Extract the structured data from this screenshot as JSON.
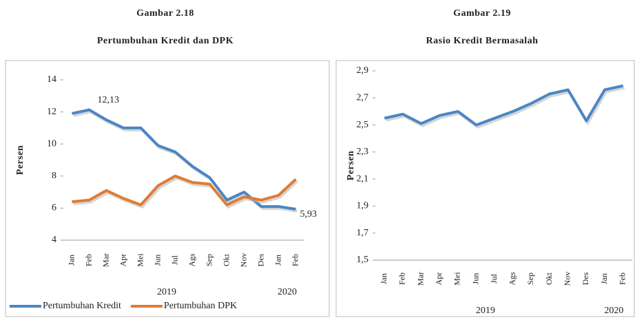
{
  "chart_data": [
    {
      "type": "line",
      "title": "Gambar 2.18",
      "subtitle": "Pertumbuhan Kredit dan DPK",
      "y_label": "Persen",
      "categories": [
        "Jan",
        "Feb",
        "Mar",
        "Apr",
        "Mei",
        "Jun",
        "Jul",
        "Ags",
        "Sep",
        "Okt",
        "Nov",
        "Des",
        "Jan",
        "Feb"
      ],
      "groups": [
        {
          "label": "2019",
          "count": 12
        },
        {
          "label": "2020",
          "count": 2
        }
      ],
      "series": [
        {
          "name": "Pertumbuhan Kredit",
          "color": "#4a86c5",
          "values": [
            11.9,
            12.13,
            11.5,
            11.0,
            11.0,
            9.9,
            9.5,
            8.6,
            7.9,
            6.5,
            7.0,
            6.1,
            6.1,
            5.93
          ],
          "value_labels": [
            null,
            "12,13",
            null,
            null,
            null,
            null,
            null,
            null,
            null,
            null,
            null,
            null,
            null,
            "5,93"
          ]
        },
        {
          "name": "Pertumbuhan DPK",
          "color": "#e07b33",
          "values": [
            6.4,
            6.5,
            7.1,
            6.6,
            6.2,
            7.4,
            8.0,
            7.6,
            7.5,
            6.2,
            6.7,
            6.5,
            6.8,
            7.8
          ]
        }
      ],
      "ylim": [
        4,
        14
      ],
      "yticks": [
        4,
        6,
        8,
        10,
        12,
        14
      ],
      "grid": false,
      "legend": "bottom"
    },
    {
      "type": "line",
      "title": "Gambar 2.19",
      "subtitle": "Rasio Kredit Bermasalah",
      "y_label": "Persen",
      "categories": [
        "Jan",
        "Feb",
        "Mar",
        "Apr",
        "Mei",
        "Jun",
        "Jul",
        "Ags",
        "Sep",
        "Okt",
        "Nov",
        "Des",
        "Jan",
        "Feb"
      ],
      "groups": [
        {
          "label": "2019",
          "count": 12
        },
        {
          "label": "2020",
          "count": 2
        }
      ],
      "color": "#4a86c5",
      "values": [
        2.55,
        2.58,
        2.51,
        2.57,
        2.6,
        2.5,
        2.55,
        2.6,
        2.66,
        2.73,
        2.76,
        2.53,
        2.76,
        2.79
      ],
      "ylim": [
        1.5,
        2.9
      ],
      "yticks": [
        {
          "value": 1.5,
          "label": "1,5"
        },
        {
          "value": 1.7,
          "label": "1,7"
        },
        {
          "value": 1.9,
          "label": "1,9"
        },
        {
          "value": 2.1,
          "label": "2,1"
        },
        {
          "value": 2.3,
          "label": "2,3"
        },
        {
          "value": 2.5,
          "label": "2,5"
        },
        {
          "value": 2.7,
          "label": "2,7"
        },
        {
          "value": 2.9,
          "label": "2,9"
        }
      ],
      "grid": false
    }
  ]
}
